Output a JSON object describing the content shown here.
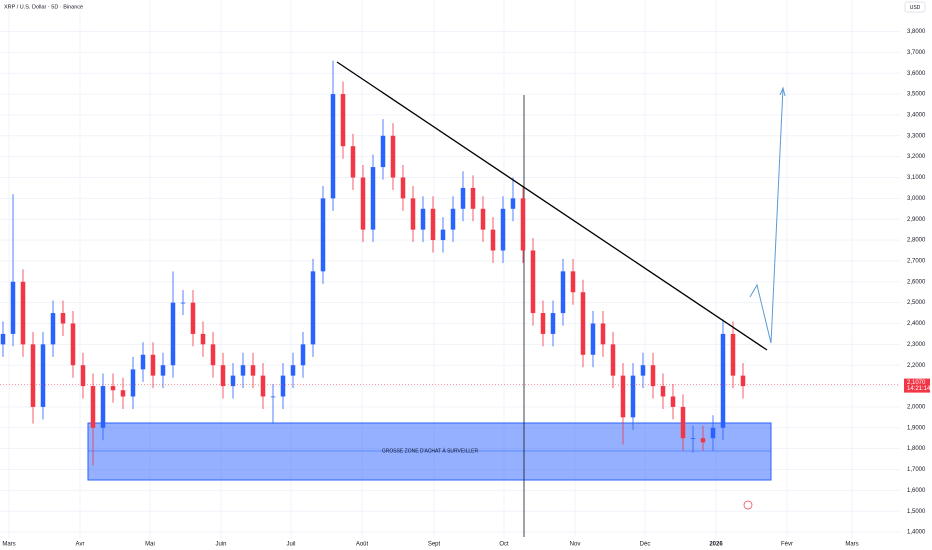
{
  "chart_data": {
    "type": "candlestick",
    "title": "XRP / U.S. Dollar · 5D · Binance",
    "currency": "USD",
    "up_color": "#2962ff",
    "down_color": "#f23645",
    "open": [
      2.3,
      2.35,
      2.6,
      2.3,
      2.0,
      2.3,
      2.45,
      2.4,
      2.2,
      2.1,
      1.9,
      2.1,
      2.08,
      2.05,
      2.18,
      2.25,
      2.15,
      2.2,
      2.5,
      2.5,
      2.35,
      2.3,
      2.2,
      2.1,
      2.15,
      2.2,
      2.15,
      2.05,
      2.05,
      2.15,
      2.2,
      2.3,
      2.65,
      3.0,
      3.5,
      3.25,
      3.1,
      2.85,
      3.15,
      3.3,
      3.1,
      3.0,
      2.85,
      2.95,
      2.8,
      2.85,
      2.95,
      3.05,
      2.95,
      2.85,
      2.75,
      2.95,
      3.0,
      2.75,
      2.45,
      2.35,
      2.45,
      2.65,
      2.55,
      2.25,
      2.4,
      2.3,
      2.15,
      1.95,
      2.15,
      2.2,
      2.1,
      2.05,
      2.0,
      1.85,
      1.85,
      1.85,
      1.9,
      2.35,
      2.15
    ],
    "high": [
      2.41,
      3.02,
      2.66,
      2.36,
      2.36,
      2.51,
      2.51,
      2.46,
      2.26,
      2.16,
      2.16,
      2.16,
      2.14,
      2.24,
      2.31,
      2.31,
      2.26,
      2.65,
      2.56,
      2.56,
      2.41,
      2.36,
      2.26,
      2.21,
      2.26,
      2.26,
      2.21,
      2.11,
      2.21,
      2.26,
      2.36,
      2.71,
      3.06,
      3.66,
      3.56,
      3.31,
      3.16,
      3.21,
      3.38,
      3.36,
      3.16,
      3.06,
      3.01,
      3.01,
      2.91,
      3.01,
      3.13,
      3.11,
      3.01,
      2.91,
      3.01,
      3.1,
      3.06,
      2.81,
      2.51,
      2.51,
      2.71,
      2.71,
      2.61,
      2.46,
      2.46,
      2.36,
      2.21,
      2.21,
      2.26,
      2.26,
      2.16,
      2.11,
      2.06,
      1.91,
      1.91,
      1.96,
      2.42,
      2.41,
      2.21
    ],
    "low": [
      2.24,
      2.29,
      2.24,
      1.92,
      1.94,
      2.24,
      2.34,
      2.14,
      2.04,
      1.72,
      1.84,
      2.02,
      1.99,
      1.99,
      2.12,
      2.09,
      2.09,
      2.14,
      2.44,
      2.29,
      2.24,
      2.14,
      2.04,
      2.04,
      2.09,
      2.09,
      1.99,
      1.92,
      1.99,
      2.09,
      2.14,
      2.24,
      2.59,
      2.94,
      3.19,
      3.04,
      2.79,
      2.79,
      3.09,
      3.04,
      2.94,
      2.79,
      2.79,
      2.74,
      2.74,
      2.79,
      2.89,
      2.89,
      2.79,
      2.69,
      2.69,
      2.89,
      2.69,
      2.39,
      2.29,
      2.29,
      2.39,
      2.49,
      2.19,
      2.19,
      2.24,
      2.09,
      1.82,
      1.89,
      2.09,
      2.04,
      1.99,
      1.94,
      1.79,
      1.78,
      1.79,
      1.79,
      1.84,
      2.09,
      2.04
    ],
    "close": [
      2.35,
      2.6,
      2.3,
      2.0,
      2.3,
      2.45,
      2.4,
      2.2,
      2.1,
      1.9,
      2.1,
      2.08,
      2.05,
      2.18,
      2.25,
      2.15,
      2.2,
      2.5,
      2.5,
      2.35,
      2.3,
      2.2,
      2.1,
      2.15,
      2.2,
      2.15,
      2.05,
      2.05,
      2.15,
      2.2,
      2.3,
      2.65,
      3.0,
      3.5,
      3.25,
      3.1,
      2.85,
      3.15,
      3.3,
      3.1,
      3.0,
      2.85,
      2.95,
      2.8,
      2.85,
      2.95,
      3.05,
      2.95,
      2.85,
      2.75,
      2.95,
      3.0,
      2.75,
      2.45,
      2.35,
      2.45,
      2.65,
      2.55,
      2.25,
      2.4,
      2.3,
      2.15,
      1.95,
      2.15,
      2.2,
      2.1,
      2.05,
      2.0,
      1.85,
      1.85,
      1.83,
      1.9,
      2.35,
      2.15,
      2.1
    ],
    "xlim": [
      -0.3,
      89.7
    ],
    "xticks": [
      {
        "value": 0.6,
        "label": "Mars"
      },
      {
        "value": 7.7,
        "label": "Avr"
      },
      {
        "value": 14.7,
        "label": "Mai"
      },
      {
        "value": 21.8,
        "label": "Juin"
      },
      {
        "value": 28.8,
        "label": "Juil"
      },
      {
        "value": 35.9,
        "label": "Août"
      },
      {
        "value": 43.1,
        "label": "Sept"
      },
      {
        "value": 50.1,
        "label": "Oct"
      },
      {
        "value": 57.2,
        "label": "Nov"
      },
      {
        "value": 64.2,
        "label": "Déc"
      },
      {
        "value": 71.3,
        "label": "2026"
      },
      {
        "value": 78.4,
        "label": "Févr"
      },
      {
        "value": 84.9,
        "label": "Mars"
      }
    ],
    "ylim": [
      1.314,
      3.951
    ],
    "yticks": [
      {
        "value": 1.4,
        "label": "1,4000"
      },
      {
        "value": 1.5,
        "label": "1,5000"
      },
      {
        "value": 1.6,
        "label": "1,6000"
      },
      {
        "value": 1.7,
        "label": "1,7000"
      },
      {
        "value": 1.8,
        "label": "1,8000"
      },
      {
        "value": 1.9,
        "label": "1,9000"
      },
      {
        "value": 2.0,
        "label": "2,0000"
      },
      {
        "value": 2.1,
        "label": "2,1000"
      },
      {
        "value": 2.2,
        "label": "2,2000"
      },
      {
        "value": 2.3,
        "label": "2,3000"
      },
      {
        "value": 2.4,
        "label": "2,4000"
      },
      {
        "value": 2.5,
        "label": "2,5000"
      },
      {
        "value": 2.6,
        "label": "2,6000"
      },
      {
        "value": 2.7,
        "label": "2,7000"
      },
      {
        "value": 2.8,
        "label": "2,8000"
      },
      {
        "value": 2.9,
        "label": "2,9000"
      },
      {
        "value": 3.0,
        "label": "3,0000"
      },
      {
        "value": 3.1,
        "label": "3,1000"
      },
      {
        "value": 3.2,
        "label": "3,2000"
      },
      {
        "value": 3.3,
        "label": "3,3000"
      },
      {
        "value": 3.4,
        "label": "3,4000"
      },
      {
        "value": 3.5,
        "label": "3,5000"
      },
      {
        "value": 3.6,
        "label": "3,6000"
      },
      {
        "value": 3.7,
        "label": "3,7000"
      },
      {
        "value": 3.8,
        "label": "3,8000"
      }
    ],
    "last_price": {
      "value": 2.107,
      "label": "2,1070"
    },
    "countdown": "14:21:14",
    "zone_label": "GROSSE ZONE D'ACHAT À SURVEILLER"
  }
}
